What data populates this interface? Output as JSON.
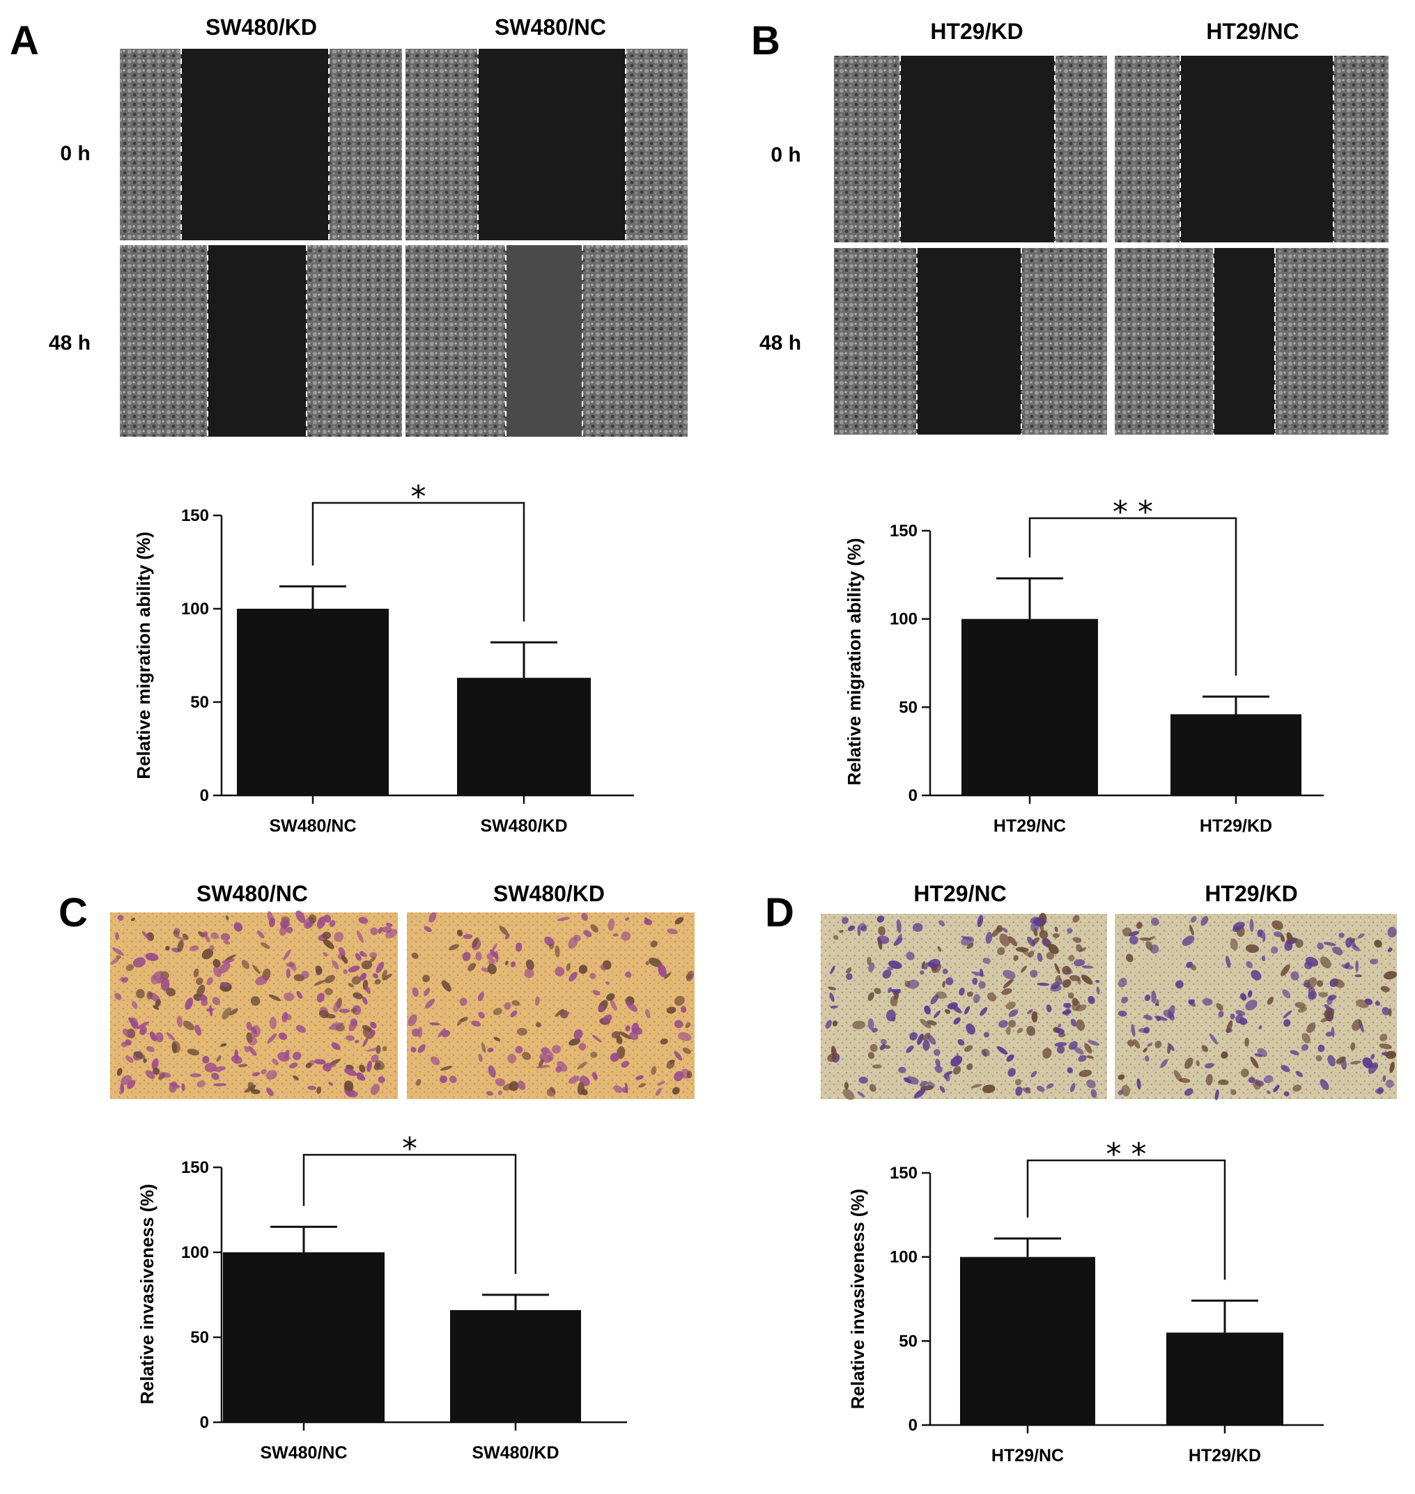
{
  "panel_letters": [
    "A",
    "B",
    "C",
    "D"
  ],
  "panel_A": {
    "columns": [
      "SW480/KD",
      "SW480/NC"
    ],
    "rows": [
      "0 h",
      "48 h"
    ]
  },
  "panel_B": {
    "columns": [
      "HT29/KD",
      "HT29/NC"
    ],
    "rows": [
      "0 h",
      "48 h"
    ]
  },
  "panel_C": {
    "columns": [
      "SW480/NC",
      "SW480/KD"
    ]
  },
  "panel_D": {
    "columns": [
      "HT29/NC",
      "HT29/KD"
    ]
  },
  "colors": {
    "bar": "#111111",
    "wound_image": "#1a1a1a",
    "transwell_sw480": "#e3b774",
    "transwell_ht29": "#d3c7a6",
    "stain_sw480": "#9a4a8c",
    "stain_ht29": "#5b3a8e"
  },
  "chart_data": [
    {
      "type": "bar",
      "panel": "A",
      "categories": [
        "SW480/NC",
        "SW480/KD"
      ],
      "values": [
        100,
        63
      ],
      "errors": [
        12,
        19
      ],
      "ylabel": "Relative migration ability (%)",
      "ylim": [
        0,
        150
      ],
      "yticks": [
        0,
        50,
        100,
        150
      ],
      "significance": "*"
    },
    {
      "type": "bar",
      "panel": "B",
      "categories": [
        "HT29/NC",
        "HT29/KD"
      ],
      "values": [
        100,
        46
      ],
      "errors": [
        23,
        10
      ],
      "ylabel": "Relative migration ability (%)",
      "ylim": [
        0,
        150
      ],
      "yticks": [
        0,
        50,
        100,
        150
      ],
      "significance": "**"
    },
    {
      "type": "bar",
      "panel": "C",
      "categories": [
        "SW480/NC",
        "SW480/KD"
      ],
      "values": [
        100,
        66
      ],
      "errors": [
        15,
        9
      ],
      "ylabel": "Relative invasiveness (%)",
      "ylim": [
        0,
        150
      ],
      "yticks": [
        0,
        50,
        100,
        150
      ],
      "significance": "*"
    },
    {
      "type": "bar",
      "panel": "D",
      "categories": [
        "HT29/NC",
        "HT29/KD"
      ],
      "values": [
        100,
        55
      ],
      "errors": [
        11,
        19
      ],
      "ylabel": "Relative invasiveness (%)",
      "ylim": [
        0,
        150
      ],
      "yticks": [
        0,
        50,
        100,
        150
      ],
      "significance": "**"
    }
  ]
}
